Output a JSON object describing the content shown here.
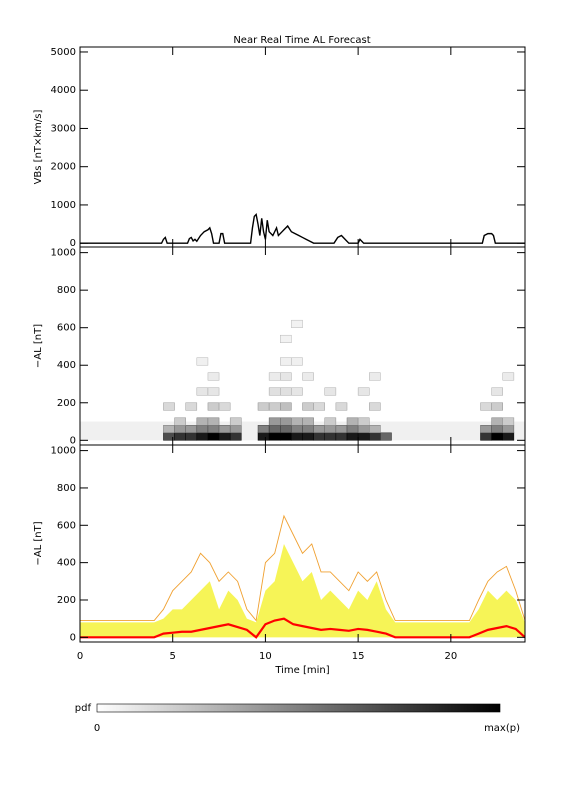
{
  "chart_data": [
    {
      "type": "line",
      "title": "Near Real Time AL Forecast",
      "ylabel": "VBs [nT×km/s]",
      "xlim": [
        0,
        24
      ],
      "xticks": [
        0,
        5,
        10,
        15,
        20
      ],
      "ylim": [
        -100,
        5130
      ],
      "yticks": [
        0,
        1000,
        2000,
        3000,
        4000,
        5000
      ],
      "x": [
        0,
        4.4,
        4.5,
        4.6,
        4.7,
        5.8,
        5.9,
        6.0,
        6.1,
        6.2,
        6.3,
        6.5,
        6.7,
        6.9,
        7.0,
        7.1,
        7.2,
        7.5,
        7.6,
        7.7,
        7.8,
        9.2,
        9.3,
        9.4,
        9.5,
        9.6,
        9.7,
        9.8,
        9.9,
        10.0,
        10.1,
        10.2,
        10.4,
        10.6,
        10.7,
        10.9,
        11.0,
        11.2,
        11.4,
        11.6,
        11.8,
        12.0,
        12.2,
        12.4,
        12.6,
        13.7,
        13.9,
        14.1,
        14.3,
        14.5,
        15.0,
        15.1,
        15.3,
        21.7,
        21.8,
        22.0,
        22.2,
        22.3,
        22.4,
        24
      ],
      "series": [
        {
          "color": "#000000",
          "style": "line",
          "values": [
            0,
            0,
            100,
            150,
            0,
            0,
            120,
            150,
            60,
            100,
            50,
            200,
            300,
            350,
            400,
            250,
            0,
            0,
            250,
            250,
            0,
            0,
            400,
            700,
            750,
            500,
            200,
            650,
            300,
            100,
            600,
            300,
            200,
            400,
            200,
            300,
            350,
            450,
            300,
            250,
            200,
            150,
            100,
            50,
            0,
            0,
            150,
            200,
            100,
            0,
            0,
            100,
            0,
            0,
            200,
            250,
            250,
            200,
            0,
            0
          ]
        }
      ]
    },
    {
      "type": "heatmap",
      "ylabel": "−AL [nT]",
      "xlim": [
        0,
        24
      ],
      "xticks": [
        0,
        5,
        10,
        15,
        20
      ],
      "ylim": [
        -25,
        1030
      ],
      "yticks": [
        0,
        200,
        400,
        600,
        800,
        1000
      ],
      "background": {
        "ylim": [
          0,
          100
        ],
        "p": 0.06
      },
      "cells": [
        [
          4.8,
          20,
          0.7
        ],
        [
          5.4,
          20,
          0.8
        ],
        [
          6.0,
          20,
          0.8
        ],
        [
          6.6,
          20,
          0.9
        ],
        [
          7.2,
          20,
          1.0
        ],
        [
          7.8,
          20,
          0.9
        ],
        [
          8.4,
          20,
          0.8
        ],
        [
          9.9,
          20,
          0.9
        ],
        [
          10.5,
          20,
          1.0
        ],
        [
          11.1,
          20,
          1.0
        ],
        [
          11.7,
          20,
          0.9
        ],
        [
          12.3,
          20,
          0.9
        ],
        [
          12.9,
          20,
          0.8
        ],
        [
          13.5,
          20,
          0.8
        ],
        [
          14.1,
          20,
          0.8
        ],
        [
          14.7,
          20,
          0.9
        ],
        [
          15.3,
          20,
          0.9
        ],
        [
          15.9,
          20,
          0.8
        ],
        [
          16.5,
          20,
          0.6
        ],
        [
          21.9,
          20,
          0.8
        ],
        [
          22.5,
          20,
          1.0
        ],
        [
          23.1,
          20,
          0.9
        ],
        [
          4.8,
          60,
          0.3
        ],
        [
          5.4,
          60,
          0.4
        ],
        [
          6.0,
          60,
          0.4
        ],
        [
          6.6,
          60,
          0.5
        ],
        [
          7.2,
          60,
          0.5
        ],
        [
          7.8,
          60,
          0.4
        ],
        [
          8.4,
          60,
          0.4
        ],
        [
          9.9,
          60,
          0.5
        ],
        [
          10.5,
          60,
          0.6
        ],
        [
          11.1,
          60,
          0.6
        ],
        [
          11.7,
          60,
          0.5
        ],
        [
          12.3,
          60,
          0.5
        ],
        [
          12.9,
          60,
          0.4
        ],
        [
          13.5,
          60,
          0.4
        ],
        [
          14.1,
          60,
          0.4
        ],
        [
          14.7,
          60,
          0.5
        ],
        [
          15.3,
          60,
          0.4
        ],
        [
          15.9,
          60,
          0.3
        ],
        [
          21.9,
          60,
          0.4
        ],
        [
          22.5,
          60,
          0.5
        ],
        [
          23.1,
          60,
          0.4
        ],
        [
          5.4,
          100,
          0.2
        ],
        [
          6.6,
          100,
          0.3
        ],
        [
          7.2,
          100,
          0.3
        ],
        [
          8.4,
          100,
          0.2
        ],
        [
          10.5,
          100,
          0.4
        ],
        [
          11.1,
          100,
          0.4
        ],
        [
          11.7,
          100,
          0.3
        ],
        [
          12.3,
          100,
          0.3
        ],
        [
          13.5,
          100,
          0.2
        ],
        [
          14.7,
          100,
          0.3
        ],
        [
          15.3,
          100,
          0.2
        ],
        [
          22.5,
          100,
          0.3
        ],
        [
          23.1,
          100,
          0.2
        ],
        [
          4.8,
          180,
          0.15
        ],
        [
          6.0,
          180,
          0.15
        ],
        [
          7.2,
          180,
          0.2
        ],
        [
          7.8,
          180,
          0.15
        ],
        [
          9.9,
          180,
          0.2
        ],
        [
          10.5,
          180,
          0.2
        ],
        [
          11.1,
          180,
          0.25
        ],
        [
          12.3,
          180,
          0.2
        ],
        [
          12.9,
          180,
          0.15
        ],
        [
          14.1,
          180,
          0.15
        ],
        [
          15.9,
          180,
          0.15
        ],
        [
          21.9,
          180,
          0.15
        ],
        [
          22.5,
          180,
          0.2
        ],
        [
          6.6,
          260,
          0.1
        ],
        [
          7.2,
          260,
          0.1
        ],
        [
          10.5,
          260,
          0.12
        ],
        [
          11.1,
          260,
          0.12
        ],
        [
          11.7,
          260,
          0.1
        ],
        [
          13.5,
          260,
          0.1
        ],
        [
          15.3,
          260,
          0.1
        ],
        [
          22.5,
          260,
          0.1
        ],
        [
          7.2,
          340,
          0.08
        ],
        [
          10.5,
          340,
          0.08
        ],
        [
          11.1,
          340,
          0.1
        ],
        [
          12.3,
          340,
          0.08
        ],
        [
          15.9,
          340,
          0.08
        ],
        [
          23.1,
          340,
          0.08
        ],
        [
          6.6,
          420,
          0.06
        ],
        [
          11.1,
          420,
          0.06
        ],
        [
          11.7,
          420,
          0.06
        ],
        [
          11.1,
          540,
          0.05
        ],
        [
          11.7,
          620,
          0.05
        ]
      ],
      "colorbar": {
        "label": "pdf",
        "min_label": "0",
        "max_label": "max(p)"
      }
    },
    {
      "type": "line",
      "ylabel": "−AL [nT]",
      "xlabel": "Time [min]",
      "xlim": [
        0,
        24
      ],
      "xticks": [
        0,
        5,
        10,
        15,
        20
      ],
      "ylim": [
        -25,
        1030
      ],
      "yticks": [
        0,
        200,
        400,
        600,
        800,
        1000
      ],
      "x": [
        0,
        0.5,
        1,
        1.5,
        2,
        2.5,
        3,
        3.5,
        4,
        4.5,
        5,
        5.5,
        6,
        6.5,
        7,
        7.5,
        8,
        8.5,
        9,
        9.5,
        10,
        10.5,
        11,
        11.5,
        12,
        12.5,
        13,
        13.5,
        14,
        14.5,
        15,
        15.5,
        16,
        16.5,
        17,
        17.5,
        18,
        18.5,
        19,
        19.5,
        20,
        20.5,
        21,
        21.5,
        22,
        22.5,
        23,
        23.5,
        24
      ],
      "series": [
        {
          "color": "#f5f23a",
          "style": "area",
          "values": [
            80,
            80,
            80,
            80,
            80,
            80,
            80,
            80,
            80,
            100,
            150,
            150,
            200,
            250,
            300,
            150,
            250,
            200,
            100,
            80,
            250,
            300,
            500,
            400,
            300,
            350,
            200,
            250,
            200,
            150,
            250,
            200,
            300,
            150,
            80,
            80,
            80,
            80,
            80,
            80,
            80,
            80,
            80,
            150,
            250,
            200,
            250,
            200,
            80
          ]
        },
        {
          "color": "#f0a030",
          "style": "line",
          "values": [
            90,
            90,
            90,
            90,
            90,
            90,
            90,
            90,
            90,
            150,
            250,
            300,
            350,
            450,
            400,
            300,
            350,
            300,
            150,
            90,
            400,
            450,
            650,
            550,
            450,
            500,
            350,
            350,
            300,
            250,
            350,
            300,
            350,
            200,
            90,
            90,
            90,
            90,
            90,
            90,
            90,
            90,
            90,
            200,
            300,
            350,
            380,
            250,
            90
          ]
        },
        {
          "color": "#ff0000",
          "style": "line",
          "values": [
            0,
            0,
            0,
            0,
            0,
            0,
            0,
            0,
            0,
            20,
            25,
            30,
            30,
            40,
            50,
            60,
            70,
            55,
            40,
            0,
            70,
            90,
            100,
            70,
            60,
            50,
            40,
            45,
            40,
            35,
            45,
            40,
            30,
            20,
            0,
            0,
            0,
            0,
            0,
            0,
            0,
            0,
            0,
            20,
            40,
            50,
            60,
            45,
            0
          ]
        }
      ]
    }
  ]
}
